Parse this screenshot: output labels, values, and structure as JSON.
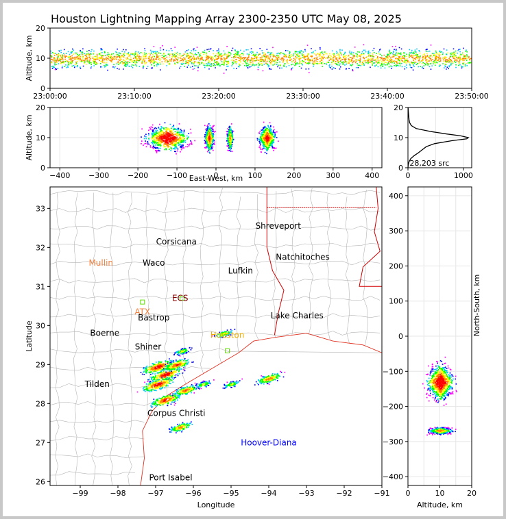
{
  "figure": {
    "title": "Houston Lightning Mapping Array 2300-2350 UTC May 08, 2025"
  },
  "chart_data": [
    {
      "type": "scatter",
      "panel": "altitude-vs-time",
      "xlabel": "",
      "ylabel": "Altitude, km",
      "xticks": [
        "23:00:00",
        "23:10:00",
        "23:20:00",
        "23:30:00",
        "23:40:00",
        "23:50:00"
      ],
      "xlim_minutes": [
        0,
        50
      ],
      "ylim": [
        0,
        20
      ],
      "yticks": [
        0,
        10,
        20
      ],
      "band": {
        "alt_min": 4,
        "alt_max": 14,
        "alt_peak": 10
      },
      "colorscale": [
        "#ff00ff",
        "#0000ff",
        "#00c8ff",
        "#00ff00",
        "#ffff00",
        "#ff8000",
        "#ff0000",
        "#000000"
      ]
    },
    {
      "type": "scatter",
      "panel": "altitude-vs-east-west",
      "xlabel": "East-West, km",
      "ylabel": "Altitude, km",
      "xlim": [
        -425,
        425
      ],
      "xticks": [
        -400,
        -300,
        -200,
        -100,
        0,
        100,
        200,
        300,
        400
      ],
      "ylim": [
        0,
        20
      ],
      "yticks": [
        0,
        10,
        20
      ],
      "clusters": [
        {
          "x_min": -200,
          "x_max": -60,
          "peak_x": -125,
          "intensity": 1.0
        },
        {
          "x_min": -35,
          "x_max": -5,
          "peak_x": -18,
          "intensity": 0.6
        },
        {
          "x_min": 25,
          "x_max": 45,
          "peak_x": 35,
          "intensity": 0.4
        },
        {
          "x_min": 105,
          "x_max": 160,
          "peak_x": 130,
          "intensity": 0.7
        }
      ]
    },
    {
      "type": "line",
      "panel": "altitude-histogram",
      "xlabel": "",
      "ylabel": "",
      "xlim": [
        0,
        1150
      ],
      "xticks": [
        0,
        1000
      ],
      "ylim": [
        0,
        20
      ],
      "yticks": [
        0,
        10,
        20
      ],
      "annotation": "28,203 src",
      "points": [
        [
          0,
          0
        ],
        [
          5,
          1
        ],
        [
          20,
          2
        ],
        [
          50,
          3
        ],
        [
          110,
          4
        ],
        [
          190,
          5
        ],
        [
          260,
          6
        ],
        [
          330,
          7
        ],
        [
          480,
          8
        ],
        [
          800,
          9
        ],
        [
          1060,
          9.6
        ],
        [
          1090,
          10
        ],
        [
          950,
          10.6
        ],
        [
          700,
          11.2
        ],
        [
          420,
          12
        ],
        [
          150,
          13
        ],
        [
          60,
          14
        ],
        [
          30,
          15
        ],
        [
          20,
          16
        ],
        [
          15,
          17
        ],
        [
          10,
          18
        ],
        [
          5,
          19
        ],
        [
          3,
          20
        ]
      ]
    },
    {
      "type": "scatter",
      "panel": "plan-view-map",
      "xlabel": "Longitude",
      "ylabel": "Latitude",
      "xlim": [
        -99.8,
        -91
      ],
      "xticks": [
        -99,
        -98,
        -97,
        -96,
        -95,
        -94,
        -93,
        -92,
        -91
      ],
      "ylim": [
        25.9,
        33.55
      ],
      "yticks": [
        26,
        27,
        28,
        29,
        30,
        31,
        32,
        33
      ],
      "storm_cells": [
        {
          "lon": -96.95,
          "lat": 28.95,
          "size": 1.0
        },
        {
          "lon": -96.75,
          "lat": 28.75,
          "size": 1.0
        },
        {
          "lon": -96.45,
          "lat": 29.0,
          "size": 0.8
        },
        {
          "lon": -96.3,
          "lat": 29.35,
          "size": 0.3
        },
        {
          "lon": -96.75,
          "lat": 28.1,
          "size": 0.9
        },
        {
          "lon": -96.95,
          "lat": 28.5,
          "size": 1.0
        },
        {
          "lon": -96.2,
          "lat": 28.35,
          "size": 0.7
        },
        {
          "lon": -95.75,
          "lat": 28.5,
          "size": 0.3
        },
        {
          "lon": -95.0,
          "lat": 28.5,
          "size": 0.3
        },
        {
          "lon": -94.0,
          "lat": 28.65,
          "size": 0.7
        },
        {
          "lon": -96.35,
          "lat": 27.4,
          "size": 0.6
        },
        {
          "lon": -95.2,
          "lat": 29.8,
          "size": 0.4
        }
      ],
      "cities": [
        {
          "name": "Shreveport",
          "lon": -93.75,
          "lat": 32.55,
          "color": "#000000"
        },
        {
          "name": "Corsicana",
          "lon": -96.45,
          "lat": 32.15,
          "color": "#000000"
        },
        {
          "name": "Natchitoches",
          "lon": -93.1,
          "lat": 31.75,
          "color": "#000000"
        },
        {
          "name": "Mullin",
          "lon": -98.45,
          "lat": 31.6,
          "color": "#f08040"
        },
        {
          "name": "Waco",
          "lon": -97.05,
          "lat": 31.6,
          "color": "#000000"
        },
        {
          "name": "Lufkin",
          "lon": -94.75,
          "lat": 31.4,
          "color": "#000000"
        },
        {
          "name": "ECS",
          "lon": -96.35,
          "lat": 30.7,
          "color": "#800000"
        },
        {
          "name": "ATX",
          "lon": -97.35,
          "lat": 30.35,
          "color": "#f08040"
        },
        {
          "name": "Bastrop",
          "lon": -97.05,
          "lat": 30.2,
          "color": "#000000"
        },
        {
          "name": "Lake Charles",
          "lon": -93.25,
          "lat": 30.25,
          "color": "#000000"
        },
        {
          "name": "Boerne",
          "lon": -98.35,
          "lat": 29.8,
          "color": "#000000"
        },
        {
          "name": "Houston",
          "lon": -95.1,
          "lat": 29.75,
          "color": "#f0b000"
        },
        {
          "name": "Shiner",
          "lon": -97.2,
          "lat": 29.45,
          "color": "#000000"
        },
        {
          "name": "Tilden",
          "lon": -98.55,
          "lat": 28.5,
          "color": "#000000"
        },
        {
          "name": "Corpus Christi",
          "lon": -96.45,
          "lat": 27.75,
          "color": "#000000"
        },
        {
          "name": "Hoover-Diana",
          "lon": -94.0,
          "lat": 27.0,
          "color": "#0000ff"
        },
        {
          "name": "Port Isabel",
          "lon": -96.6,
          "lat": 26.1,
          "color": "#000000"
        }
      ]
    },
    {
      "type": "scatter",
      "panel": "north-south-vs-altitude",
      "xlabel": "Altitude, km",
      "ylabel": "North-South, km",
      "xlim": [
        0,
        20
      ],
      "xticks": [
        0,
        10,
        20
      ],
      "ylim": [
        -425,
        425
      ],
      "yticks": [
        -400,
        -300,
        -200,
        -100,
        0,
        100,
        200,
        300,
        400
      ],
      "clusters": [
        {
          "y_min": -200,
          "y_max": -70,
          "peak_y": -130,
          "intensity": 1.0
        },
        {
          "y_min": -280,
          "y_max": -255,
          "peak_y": -268,
          "intensity": 0.4
        }
      ]
    }
  ]
}
